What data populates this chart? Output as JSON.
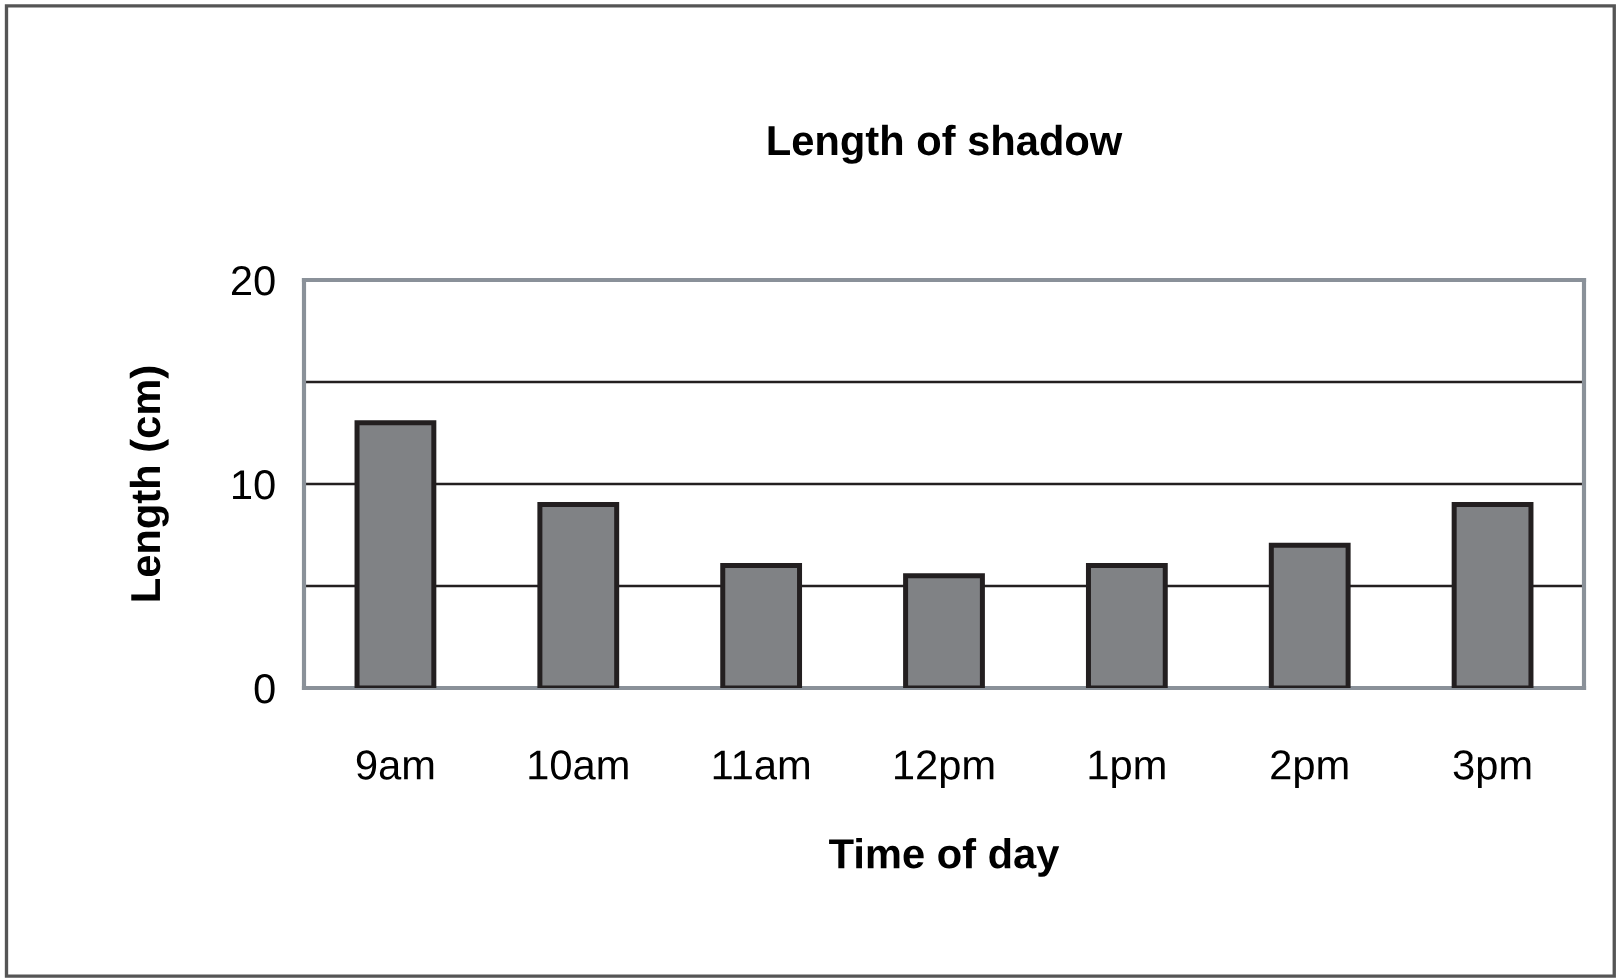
{
  "chart_data": {
    "type": "bar",
    "title": "Length of shadow",
    "xlabel": "Time of day",
    "ylabel": "Length (cm)",
    "categories": [
      "9am",
      "10am",
      "11am",
      "12pm",
      "1pm",
      "2pm",
      "3pm"
    ],
    "values": [
      13,
      9,
      6,
      5.5,
      6,
      7,
      9
    ],
    "color": "#808285",
    "ylim": [
      0,
      20
    ],
    "yticks": [
      0,
      {
        "value": 5,
        "label": null
      },
      10,
      {
        "value": 15,
        "label": null
      },
      20
    ],
    "grid": "y"
  }
}
